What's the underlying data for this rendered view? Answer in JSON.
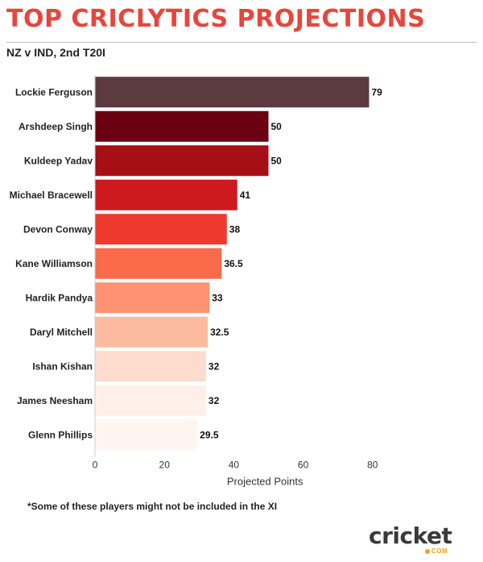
{
  "header": {
    "title": "TOP CRICLYTICS PROJECTIONS",
    "subtitle": "NZ v IND, 2nd T20I"
  },
  "footnote": "*Some of these players might not be included in the XI",
  "logo": {
    "word": "cricket",
    "sub": "COM",
    "accent": "#f0a21a"
  },
  "chart_data": {
    "type": "bar",
    "orientation": "horizontal",
    "categories": [
      "Lockie Ferguson",
      "Arshdeep Singh",
      "Kuldeep Yadav",
      "Michael Bracewell",
      "Devon Conway",
      "Kane Williamson",
      "Hardik Pandya",
      "Daryl Mitchell",
      "Ishan Kishan",
      "James Neesham",
      "Glenn Phillips"
    ],
    "values": [
      79,
      50,
      50,
      41,
      38,
      36.5,
      33,
      32.5,
      32,
      32,
      29.5
    ],
    "value_labels": [
      "79",
      "50",
      "50",
      "41",
      "38",
      "36.5",
      "33",
      "32.5",
      "32",
      "32",
      "29.5"
    ],
    "colors": [
      "#5c3a3f",
      "#6b0010",
      "#a50f15",
      "#ce1a1e",
      "#ee3a2e",
      "#fb6a4a",
      "#fc9272",
      "#fcbba1",
      "#fddccd",
      "#fef0e9",
      "#fff5f0"
    ],
    "xlabel": "Projected Points",
    "xlim": [
      0,
      90
    ],
    "xticks": [
      0,
      20,
      40,
      60,
      80
    ],
    "grid": false
  }
}
